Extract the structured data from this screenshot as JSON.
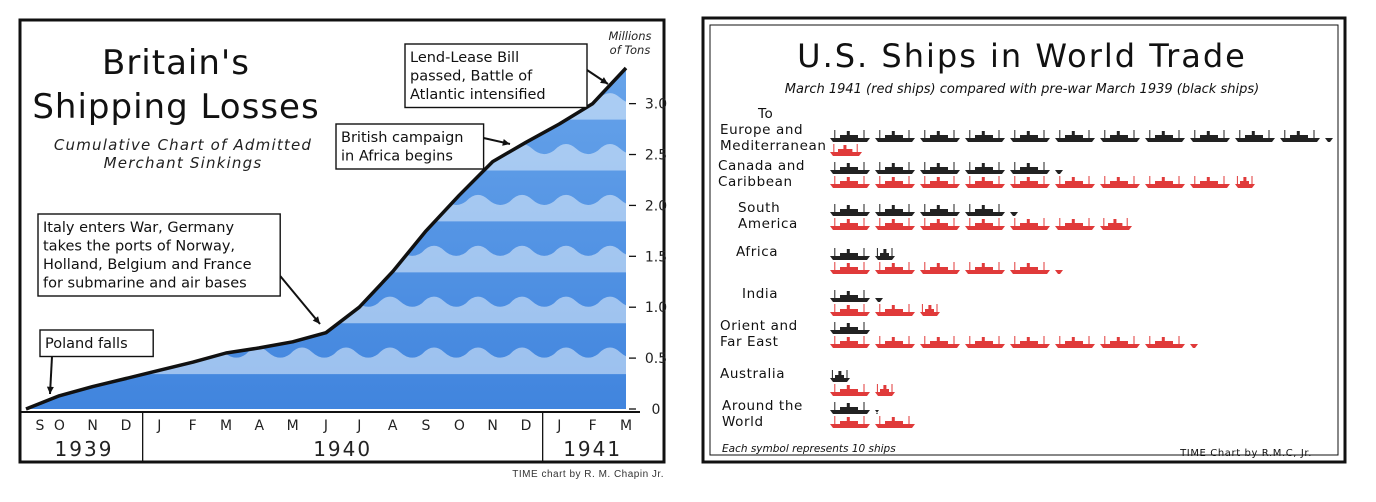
{
  "chart_data": [
    {
      "type": "area",
      "title": "Britain's Shipping Losses",
      "subtitle": [
        "Cumulative Chart of Admitted",
        "Merchant Sinkings"
      ],
      "unit_label": [
        "Millions",
        "of Tons"
      ],
      "ylim": [
        0,
        3.35
      ],
      "y_ticks": [
        "0",
        "0.5",
        "1.0",
        "1.5",
        "2.0",
        "2.5",
        "3.0"
      ],
      "y_tick_values": [
        0,
        0.5,
        1.0,
        1.5,
        2.0,
        2.5,
        3.0
      ],
      "months": [
        "S",
        "O",
        "N",
        "D",
        "J",
        "F",
        "M",
        "A",
        "M",
        "J",
        "J",
        "A",
        "S",
        "O",
        "N",
        "D",
        "J",
        "F",
        "M"
      ],
      "years": [
        {
          "label": "1939",
          "start": 0,
          "end": 3
        },
        {
          "label": "1940",
          "start": 4,
          "end": 15
        },
        {
          "label": "1941",
          "start": 16,
          "end": 18
        }
      ],
      "series": [
        {
          "x_month_index": [
            0,
            1,
            2,
            3,
            4,
            5,
            6,
            7,
            8,
            9,
            10,
            11,
            12,
            13,
            14,
            15,
            16,
            17,
            18
          ],
          "values": [
            0.0,
            0.13,
            0.22,
            0.3,
            0.38,
            0.46,
            0.55,
            0.6,
            0.66,
            0.75,
            1.0,
            1.35,
            1.75,
            2.1,
            2.43,
            2.62,
            2.8,
            3.0,
            3.35
          ]
        }
      ],
      "annotations": [
        {
          "lines": [
            "Poland falls"
          ],
          "month_index": 0.5
        },
        {
          "lines": [
            "Italy enters War, Germany",
            "takes the ports of Norway,",
            "Holland, Belgium and France",
            "for submarine and air bases"
          ],
          "month_index": 9.2
        },
        {
          "lines": [
            "British campaign",
            "in Africa begins"
          ],
          "month_index": 14.6
        },
        {
          "lines": [
            "Lend-Lease Bill",
            "passed, Battle of",
            "Atlantic intensified"
          ],
          "month_index": 17.6
        }
      ],
      "credit": "TIME chart by R. M. Chapin Jr.",
      "colors": {
        "fill": "#2f7ee0",
        "line": "#111111"
      }
    },
    {
      "type": "bar",
      "title": "U.S. Ships in World Trade",
      "subtitle": "March 1941 (red ships) compared with pre-war March 1939 (black ships)",
      "categories": [
        [
          "To",
          "Europe and",
          "Mediterranean"
        ],
        [
          "Canada and",
          "Caribbean"
        ],
        [
          "South",
          "America"
        ],
        [
          "Africa"
        ],
        [
          "India"
        ],
        [
          "Orient and",
          "Far East"
        ],
        [
          "Australia"
        ],
        [
          "Around the",
          "World"
        ]
      ],
      "series": [
        {
          "color": "#222222",
          "values": [
            112,
            52,
            42,
            15,
            12,
            10,
            5,
            11
          ]
        },
        {
          "color": "#e03a3a",
          "values": [
            8,
            95,
            68,
            52,
            25,
            82,
            15,
            20
          ]
        }
      ],
      "footnote": "Each symbol represents 10 ships",
      "credit": "TIME Chart by R.M.C, Jr."
    }
  ]
}
